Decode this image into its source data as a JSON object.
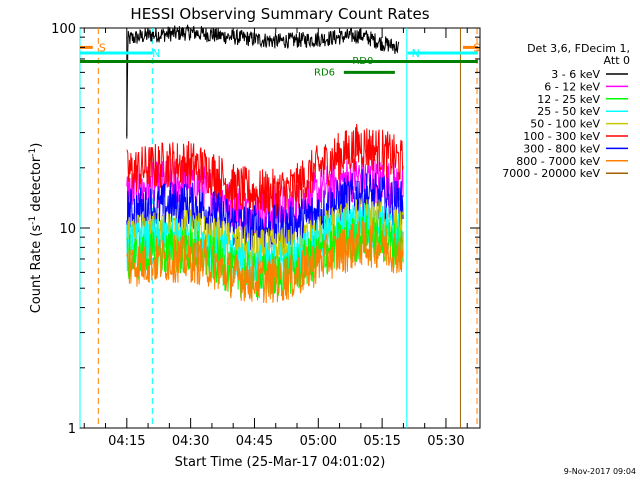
{
  "chart_data": {
    "type": "line",
    "title": "HESSI Observing Summary Count Rates",
    "xlabel": "Start Time (25-Mar-17 04:01:02)",
    "ylabel_main": "Count Rate (s",
    "ylabel_sup": "-1",
    "ylabel_rest": " detector",
    "ylabel_end": ")",
    "date_stamp": "9-Nov-2017 09:04",
    "y_scale": "log",
    "ylim": [
      1,
      100
    ],
    "xlim_minutes": [
      4.0,
      98.0
    ],
    "y_ticks": [
      {
        "value": 1,
        "label": "1"
      },
      {
        "value": 10,
        "label": "10"
      },
      {
        "value": 100,
        "label": "100"
      }
    ],
    "x_ticks": [
      {
        "minute": 15,
        "label": "04:15"
      },
      {
        "minute": 30,
        "label": "04:30"
      },
      {
        "minute": 45,
        "label": "04:45"
      },
      {
        "minute": 60,
        "label": "05:00"
      },
      {
        "minute": 75,
        "label": "05:15"
      },
      {
        "minute": 90,
        "label": "05:30"
      }
    ],
    "legend": {
      "header": [
        "Det 3,6, FDecim 1,",
        "Att 0"
      ],
      "entries": [
        {
          "label": "3 - 6 keV",
          "color": "#000000"
        },
        {
          "label": "6 - 12 keV",
          "color": "#ff00ff"
        },
        {
          "label": "12 - 25 keV",
          "color": "#00ff00"
        },
        {
          "label": "25 - 50 keV",
          "color": "#00ffff"
        },
        {
          "label": "50 - 100 keV",
          "color": "#c8c800"
        },
        {
          "label": "100 - 300 keV",
          "color": "#ff0000"
        },
        {
          "label": "300 - 800 keV",
          "color": "#0000ff"
        },
        {
          "label": "800 - 7000 keV",
          "color": "#ff8000"
        },
        {
          "label": "7000 - 20000 keV",
          "color": "#a06000"
        }
      ]
    },
    "series": [
      {
        "name": "3 - 6 keV",
        "color": "#000000",
        "points": [
          [
            15,
            28
          ],
          [
            15.3,
            88
          ],
          [
            20,
            92
          ],
          [
            30,
            95
          ],
          [
            40,
            90
          ],
          [
            50,
            86
          ],
          [
            60,
            88
          ],
          [
            70,
            92
          ],
          [
            75,
            84
          ],
          [
            79,
            80
          ]
        ]
      },
      {
        "name": "6 - 12 keV",
        "color": "#ff00ff",
        "points": [
          [
            15,
            15
          ],
          [
            20,
            16
          ],
          [
            25,
            17
          ],
          [
            30,
            17
          ],
          [
            35,
            15
          ],
          [
            40,
            13
          ],
          [
            45,
            12
          ],
          [
            50,
            12.5
          ],
          [
            55,
            13
          ],
          [
            60,
            15
          ],
          [
            65,
            17
          ],
          [
            70,
            18
          ],
          [
            75,
            17
          ],
          [
            80,
            16
          ]
        ]
      },
      {
        "name": "100 - 300 keV",
        "color": "#ff0000",
        "points": [
          [
            15,
            19
          ],
          [
            20,
            20
          ],
          [
            25,
            21
          ],
          [
            30,
            21
          ],
          [
            35,
            19
          ],
          [
            40,
            16
          ],
          [
            45,
            15
          ],
          [
            50,
            15
          ],
          [
            55,
            16
          ],
          [
            60,
            20
          ],
          [
            65,
            23
          ],
          [
            70,
            26
          ],
          [
            75,
            24
          ],
          [
            80,
            21
          ]
        ]
      },
      {
        "name": "300 - 800 keV",
        "color": "#0000ff",
        "points": [
          [
            15,
            12
          ],
          [
            20,
            12.5
          ],
          [
            25,
            13
          ],
          [
            30,
            13
          ],
          [
            35,
            12
          ],
          [
            40,
            10.5
          ],
          [
            45,
            10
          ],
          [
            50,
            10
          ],
          [
            55,
            10.5
          ],
          [
            60,
            12
          ],
          [
            65,
            13.5
          ],
          [
            70,
            15
          ],
          [
            75,
            14
          ],
          [
            80,
            13
          ]
        ]
      },
      {
        "name": "50 - 100 keV",
        "color": "#c8c800",
        "points": [
          [
            15,
            9
          ],
          [
            20,
            9.2
          ],
          [
            25,
            9.5
          ],
          [
            30,
            9.5
          ],
          [
            35,
            8.8
          ],
          [
            40,
            8
          ],
          [
            45,
            7.5
          ],
          [
            50,
            7.6
          ],
          [
            55,
            8
          ],
          [
            60,
            9
          ],
          [
            65,
            10
          ],
          [
            70,
            11
          ],
          [
            75,
            10.5
          ],
          [
            80,
            9.5
          ]
        ]
      },
      {
        "name": "25 - 50 keV",
        "color": "#00ffff",
        "points": [
          [
            15,
            8
          ],
          [
            20,
            8.4
          ],
          [
            25,
            8.8
          ],
          [
            30,
            8.8
          ],
          [
            35,
            8
          ],
          [
            40,
            7
          ],
          [
            45,
            6.5
          ],
          [
            50,
            6.5
          ],
          [
            55,
            7
          ],
          [
            60,
            8.5
          ],
          [
            65,
            9.5
          ],
          [
            70,
            10.5
          ],
          [
            75,
            10
          ],
          [
            80,
            9
          ]
        ]
      },
      {
        "name": "12 - 25 keV",
        "color": "#00ff00",
        "points": [
          [
            15,
            7
          ],
          [
            20,
            7.3
          ],
          [
            25,
            7.7
          ],
          [
            30,
            7.7
          ],
          [
            35,
            7
          ],
          [
            40,
            6
          ],
          [
            45,
            5.7
          ],
          [
            50,
            5.8
          ],
          [
            55,
            6.2
          ],
          [
            60,
            7.3
          ],
          [
            65,
            8.3
          ],
          [
            70,
            9
          ],
          [
            75,
            8.7
          ],
          [
            80,
            8
          ]
        ]
      },
      {
        "name": "800 - 7000 keV",
        "color": "#ff8000",
        "points": [
          [
            15,
            6.5
          ],
          [
            20,
            6.8
          ],
          [
            25,
            7
          ],
          [
            30,
            7
          ],
          [
            35,
            6.5
          ],
          [
            40,
            5.8
          ],
          [
            45,
            5.5
          ],
          [
            50,
            5.5
          ],
          [
            55,
            5.8
          ],
          [
            60,
            6.8
          ],
          [
            65,
            7.6
          ],
          [
            70,
            8.4
          ],
          [
            75,
            8.2
          ],
          [
            80,
            7.5
          ]
        ]
      }
    ],
    "markers": [
      {
        "label": "S",
        "color": "#ff8000",
        "minute": 7.5,
        "bar_from": 4,
        "bar_to": 7,
        "level": 80
      },
      {
        "label": "S",
        "color": "#ff8000",
        "minute": 95.5,
        "bar_from": 94,
        "bar_to": 97.5,
        "level": 80
      },
      {
        "label": "N",
        "color": "#00ffff",
        "minute": 20,
        "bar_from": 4,
        "bar_to": 21,
        "level": 75
      },
      {
        "label": "N",
        "color": "#00ffff",
        "minute": 81,
        "bar_from": 81,
        "bar_to": 97.5,
        "level": 75
      }
    ],
    "green_bars": [
      {
        "label": "",
        "from": 4,
        "to": 97.5,
        "level": 68
      },
      {
        "label": "RD0",
        "from": 66,
        "to": 78,
        "level": 60,
        "label_minute": 68,
        "label_level": 66
      },
      {
        "label": "RD6",
        "from": 0,
        "to": 0,
        "level": 0,
        "label_minute": 59,
        "label_level": 58
      }
    ],
    "vlines": [
      {
        "minute": 4.0,
        "color": "#00ffff",
        "dashed": false
      },
      {
        "minute": 8.3,
        "color": "#ff8000",
        "dashed": true
      },
      {
        "minute": 21.0,
        "color": "#00ffff",
        "dashed": true
      },
      {
        "minute": 80.8,
        "color": "#00ffff",
        "dashed": false
      },
      {
        "minute": 93.4,
        "color": "#a06000",
        "dashed": false
      },
      {
        "minute": 97.3,
        "color": "#ff8000",
        "dashed": true
      }
    ],
    "vline_15": {
      "minute": 15,
      "from": 28,
      "to": 90,
      "color": "#000000"
    }
  }
}
